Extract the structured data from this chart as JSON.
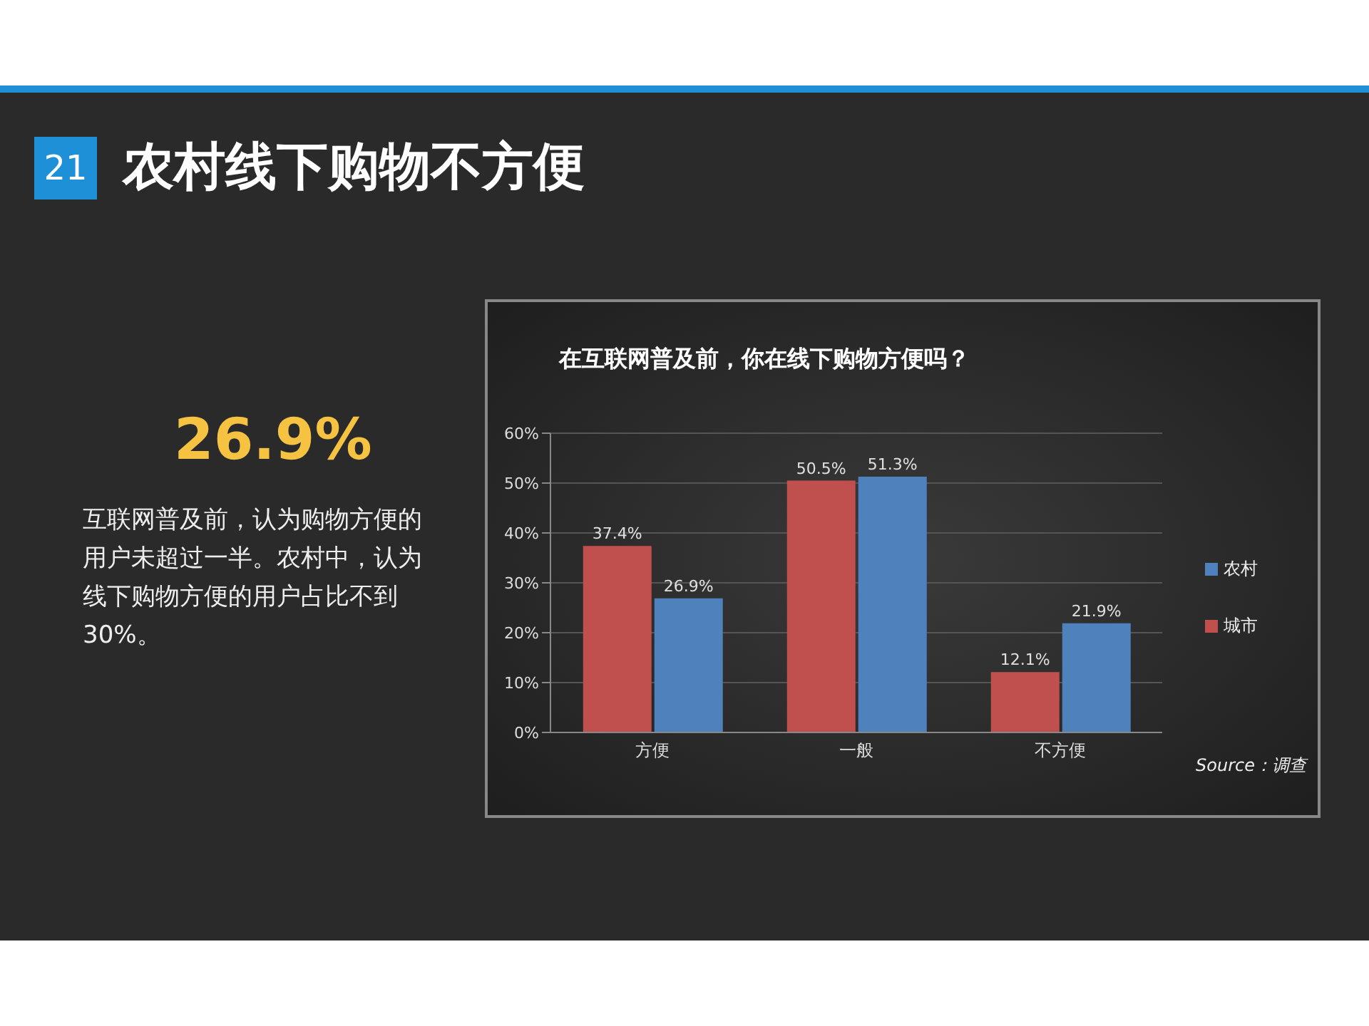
{
  "chart_data": {
    "type": "bar",
    "title": "在互联网普及前，你在线下购物方便吗？",
    "categories": [
      "方便",
      "一般",
      "不方便"
    ],
    "series": [
      {
        "name": "城市",
        "color": "#c0504d",
        "values": [
          37.4,
          50.5,
          12.1
        ],
        "value_labels": [
          "37.4%",
          "50.5%",
          "12.1%"
        ]
      },
      {
        "name": "农村",
        "color": "#4f81bd",
        "values": [
          26.9,
          51.3,
          21.9
        ],
        "value_labels": [
          "26.9%",
          "51.3%",
          "21.9%"
        ]
      }
    ],
    "ylim": [
      0,
      60
    ],
    "yticks": [
      {
        "value": 0,
        "label": "0%"
      },
      {
        "value": 10,
        "label": "10%"
      },
      {
        "value": 20,
        "label": "20%"
      },
      {
        "value": 30,
        "label": "30%"
      },
      {
        "value": 40,
        "label": "40%"
      },
      {
        "value": 50,
        "label": "50%"
      },
      {
        "value": 60,
        "label": "60%"
      }
    ],
    "grid": "y",
    "legend": "right",
    "annotations": [
      "21",
      "农村线下购物不方便",
      "26.9%",
      "互联网普及前，认为购物方便的用户未超过一半。农村中，认为线下购物方便的用户占比不到30%。",
      "Source：调查"
    ]
  }
}
